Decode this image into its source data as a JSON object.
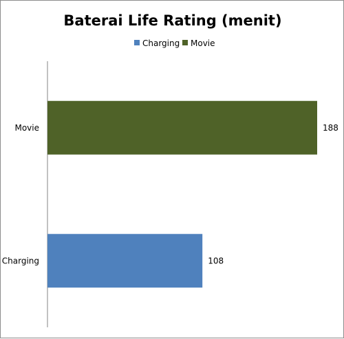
{
  "chart_data": {
    "type": "bar",
    "orientation": "horizontal",
    "title": "Baterai Life Rating (menit)",
    "categories": [
      "Charging",
      "Movie"
    ],
    "series": [
      {
        "name": "Charging",
        "values": [
          108,
          null
        ],
        "color": "#4F81BD"
      },
      {
        "name": "Movie",
        "values": [
          null,
          188
        ],
        "color": "#4F6228"
      }
    ],
    "xlim": [
      0,
      190
    ],
    "grid": false,
    "legend_position": "top",
    "data_labels": true
  }
}
